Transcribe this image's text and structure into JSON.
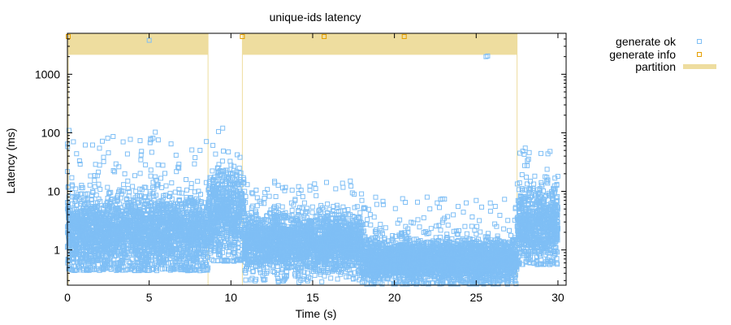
{
  "chart_data": {
    "type": "scatter",
    "title": "unique-ids latency",
    "xlabel": "Time (s)",
    "ylabel": "Latency (ms)",
    "xlim": [
      0,
      30.5
    ],
    "ylim": [
      0.25,
      5000
    ],
    "yscale": "log",
    "xticks": [
      0,
      5,
      10,
      15,
      20,
      25,
      30
    ],
    "xtick_labels": [
      "0",
      "5",
      "10",
      "15",
      "20",
      "25",
      "30"
    ],
    "yticks": [
      1,
      10,
      100,
      1000
    ],
    "ytick_labels": [
      "1",
      "10",
      "100",
      "1000"
    ],
    "grid": false,
    "legend_position": "top-right, outside plot",
    "legend": [
      {
        "label": "generate ok",
        "marker": "square-open",
        "color": "#7fbff5"
      },
      {
        "label": "generate info",
        "marker": "square-open",
        "color": "#e69f00"
      },
      {
        "label": "partition",
        "marker": "band",
        "color": "#eedd9f"
      }
    ],
    "partitions": [
      {
        "start": 0.05,
        "end": 8.6
      },
      {
        "start": 10.7,
        "end": 27.5
      }
    ],
    "series": [
      {
        "name": "generate ok",
        "color": "#7fbff5",
        "regimes": [
          {
            "x_start": 0.0,
            "x_end": 8.6,
            "median": 2.0,
            "p_low": 0.55,
            "p_high": 12,
            "max": 110
          },
          {
            "x_start": 8.6,
            "x_end": 10.8,
            "median": 4.0,
            "p_low": 0.8,
            "p_high": 25,
            "max": 120
          },
          {
            "x_start": 10.8,
            "x_end": 18.0,
            "median": 1.3,
            "p_low": 0.35,
            "p_high": 3.5,
            "max": 15
          },
          {
            "x_start": 18.0,
            "x_end": 27.5,
            "median": 0.65,
            "p_low": 0.3,
            "p_high": 1.6,
            "max": 8
          },
          {
            "x_start": 27.5,
            "x_end": 30.0,
            "median": 2.5,
            "p_low": 0.7,
            "p_high": 15,
            "max": 55
          }
        ],
        "outliers": [
          {
            "x": 5.0,
            "y": 3800
          },
          {
            "x": 25.6,
            "y": 2000
          },
          {
            "x": 25.7,
            "y": 2050
          },
          {
            "x": 9.5,
            "y": 120
          },
          {
            "x": 0.1,
            "y": 110
          },
          {
            "x": 28.0,
            "y": 55
          },
          {
            "x": 20.5,
            "y": 7.5
          },
          {
            "x": 25.0,
            "y": 7.0
          },
          {
            "x": 17.3,
            "y": 15
          }
        ]
      },
      {
        "name": "generate info",
        "color": "#e69f00",
        "points": [
          {
            "x": 0.05,
            "y": 4800
          },
          {
            "x": 10.7,
            "y": 4800
          },
          {
            "x": 15.7,
            "y": 4800
          },
          {
            "x": 20.6,
            "y": 4800
          }
        ]
      }
    ]
  }
}
